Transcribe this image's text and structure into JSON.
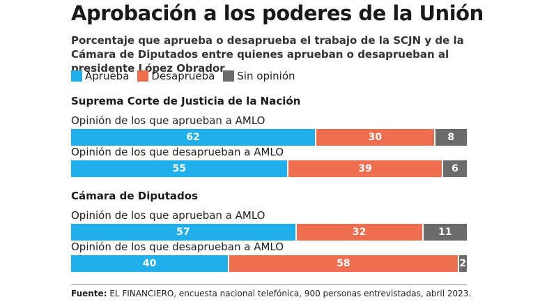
{
  "title": "Aprobación a los poderes de la Unión",
  "subtitle": "Porcentaje que aprueba o desaprueba el trabajo de la SCJN y de la Cámara de Diputados entre quienes aprueban o desaprueban al presidente López Obrador",
  "colors": {
    "aprueba": "#1fb0ec",
    "desaprueba": "#ee6e4f",
    "sin_opinion": "#6b6b6b"
  },
  "legend": [
    {
      "label": "Aprueba",
      "color": "#1fb0ec"
    },
    {
      "label": "Desaprueba",
      "color": "#ee6e4f"
    },
    {
      "label": "Sin opinión",
      "color": "#6b6b6b"
    }
  ],
  "footer": {
    "label": "Fuente:",
    "text": " EL FINANCIERO, encuesta nacional telefónica, 900 personas entrevistadas, abril 2023."
  },
  "chart_data": {
    "type": "bar",
    "orientation": "horizontal",
    "stacked": true,
    "xlim": [
      0,
      100
    ],
    "series_names": [
      "Aprueba",
      "Desaprueba",
      "Sin opinión"
    ],
    "groups": [
      {
        "name": "Suprema Corte de Justicia de la Nación",
        "rows": [
          {
            "label": "Opinión de los que aprueban a AMLO",
            "values": [
              62,
              30,
              8
            ]
          },
          {
            "label": "Opinión de los que desaprueban a AMLO",
            "values": [
              55,
              39,
              6
            ]
          }
        ]
      },
      {
        "name": "Cámara de Diputados",
        "rows": [
          {
            "label": "Opinión de los que aprueban a AMLO",
            "values": [
              57,
              32,
              11
            ]
          },
          {
            "label": "Opinión de los que desaprueban a AMLO",
            "values": [
              40,
              58,
              2
            ]
          }
        ]
      }
    ]
  }
}
